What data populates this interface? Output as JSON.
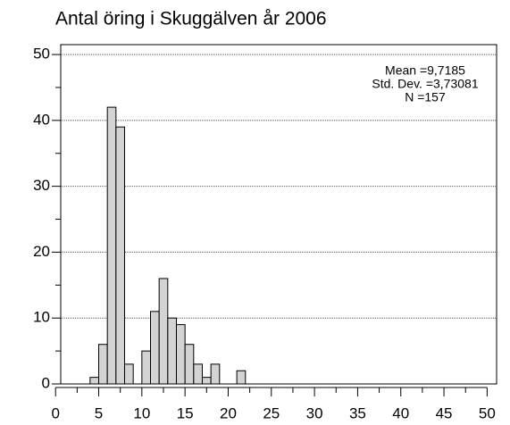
{
  "chart_data": {
    "type": "histogram",
    "title": "Antal öring i Skuggälven år 2006",
    "annotations": [
      "Mean =9,7185",
      "Std. Dev. =3,73081",
      "N =157"
    ],
    "bins": [
      4,
      5,
      6,
      7,
      8,
      9,
      10,
      11,
      12,
      13,
      14,
      15,
      16,
      17,
      18,
      19,
      20,
      21,
      22
    ],
    "values": [
      1,
      6,
      42,
      39,
      3,
      0,
      5,
      11,
      16,
      10,
      9,
      6,
      3,
      1,
      3,
      0,
      0,
      2
    ],
    "color": "#d3d3d3",
    "xlim": [
      0.6,
      51.1
    ],
    "xticks": [
      0,
      5,
      10,
      15,
      20,
      25,
      30,
      35,
      40,
      45,
      50
    ],
    "ylim": [
      0,
      51.5
    ],
    "yticks": [
      0,
      10,
      20,
      30,
      40,
      50
    ],
    "grid": true
  }
}
